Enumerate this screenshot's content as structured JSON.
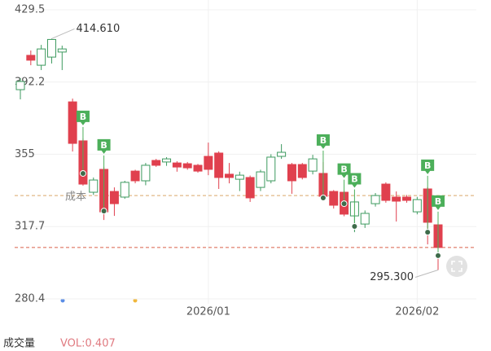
{
  "chart_data": {
    "type": "candlestick",
    "categories": [
      null,
      null,
      null,
      null,
      null,
      null,
      null,
      null,
      null,
      null,
      null,
      null,
      null,
      null,
      null,
      null,
      null,
      null,
      "2026/01",
      null,
      null,
      null,
      null,
      null,
      null,
      null,
      null,
      null,
      null,
      null,
      null,
      null,
      null,
      null,
      null,
      null,
      null,
      null,
      "2026/02",
      null,
      null
    ],
    "open": [
      388.3,
      406.0,
      400.9,
      405.1,
      407.7,
      382.0,
      361.9,
      335.4,
      347.2,
      335.8,
      332.9,
      346.3,
      341.3,
      351.8,
      351.0,
      350.5,
      350.1,
      349.3,
      353.9,
      355.6,
      344.7,
      342.1,
      343.0,
      337.9,
      341.3,
      353.9,
      349.7,
      349.7,
      346.3,
      345.1,
      335.8,
      335.4,
      323.2,
      319.0,
      329.5,
      339.6,
      332.9,
      332.9,
      325.3,
      337.1,
      318.6
    ],
    "high": [
      394.2,
      408.5,
      411.4,
      414.61,
      411.0,
      383.7,
      363.2,
      343.0,
      348.5,
      337.9,
      341.3,
      347.0,
      350.5,
      352.6,
      353.5,
      351.4,
      351.0,
      350.0,
      361.0,
      356.5,
      350.5,
      346.0,
      344.0,
      347.0,
      355.0,
      360.2,
      350.5,
      350.5,
      354.7,
      351.0,
      336.5,
      336.0,
      331.0,
      326.0,
      335.0,
      340.5,
      335.8,
      334.0,
      333.0,
      338.0,
      319.5
    ],
    "low": [
      383.3,
      400.9,
      398.4,
      401.8,
      398.4,
      356.4,
      338.8,
      334.0,
      321.1,
      323.2,
      332.0,
      340.0,
      339.0,
      348.5,
      349.0,
      346.0,
      347.0,
      345.5,
      344.2,
      337.1,
      340.0,
      336.0,
      330.4,
      336.0,
      340.0,
      352.6,
      334.6,
      342.0,
      344.6,
      332.0,
      327.0,
      323.0,
      314.8,
      317.0,
      328.0,
      330.0,
      320.3,
      330.0,
      324.0,
      308.5,
      295.3
    ],
    "close": [
      392.5,
      403.5,
      409.3,
      414.2,
      409.3,
      360.6,
      339.6,
      341.7,
      325.3,
      329.5,
      340.5,
      341.3,
      349.3,
      349.3,
      352.6,
      348.4,
      348.0,
      346.3,
      347.2,
      343.0,
      343.0,
      344.2,
      332.5,
      345.9,
      353.5,
      356.0,
      341.3,
      343.0,
      352.6,
      333.3,
      328.7,
      324.1,
      330.4,
      324.5,
      333.7,
      331.2,
      330.8,
      331.2,
      331.6,
      319.9,
      306.9
    ],
    "up_color": "#3d9a5f",
    "down_color": "#e0404e",
    "buy_label": "B",
    "buy_prices": [
      null,
      null,
      null,
      null,
      null,
      null,
      345.1,
      null,
      325.7,
      null,
      null,
      null,
      null,
      null,
      null,
      null,
      null,
      null,
      null,
      null,
      null,
      null,
      null,
      null,
      null,
      null,
      null,
      null,
      null,
      332.5,
      null,
      329.5,
      317.8,
      null,
      null,
      null,
      null,
      null,
      null,
      314.8,
      302.7
    ],
    "buy_color": "#4caf5a",
    "reference_lines": [
      {
        "value": 333.7,
        "label": "成本",
        "color": "#d9a86a"
      },
      {
        "value": 306.9,
        "color": "#d9604a"
      }
    ],
    "annotations": [
      {
        "value": 414.61,
        "label": "414.610"
      },
      {
        "value": 295.3,
        "label": "295.300"
      }
    ],
    "ylim": [
      280.4,
      429.5
    ],
    "yticks": [
      429.5,
      392.2,
      355.0,
      317.7,
      280.4
    ],
    "grid": true
  },
  "volume": {
    "title": "成交量",
    "label": "VOL:0.407"
  }
}
